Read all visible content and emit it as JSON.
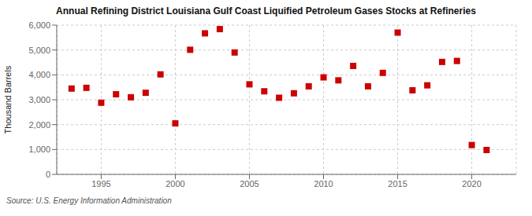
{
  "chart_data": {
    "type": "scatter",
    "title": "Annual Refining District Louisiana Gulf Coast Liquified Petroleum Gases Stocks at Refineries",
    "ylabel": "Thousand Barrels",
    "annotations": [
      "Source: U.S. Energy Information Administration"
    ],
    "x": [
      1993,
      1994,
      1995,
      1996,
      1997,
      1998,
      1999,
      2000,
      2001,
      2002,
      2003,
      2004,
      2005,
      2006,
      2007,
      2008,
      2009,
      2010,
      2011,
      2012,
      2013,
      2014,
      2015,
      2016,
      2017,
      2018,
      2019,
      2020,
      2021
    ],
    "values": [
      3450,
      3480,
      2880,
      3220,
      3100,
      3280,
      4020,
      2050,
      5010,
      5670,
      5840,
      4900,
      3620,
      3340,
      3080,
      3260,
      3540,
      3900,
      3780,
      4360,
      3540,
      4080,
      5700,
      3380,
      3580,
      4520,
      4560,
      1180,
      980
    ],
    "color": "#cc0000",
    "marker": "square",
    "xlim": [
      1992,
      2023
    ],
    "xticks": [
      1995,
      2000,
      2005,
      2010,
      2015,
      2020
    ],
    "ylim": [
      0,
      6000
    ],
    "yticks": [
      0,
      {
        "value": 1000,
        "label": "1,000"
      },
      {
        "value": 2000,
        "label": "2,000"
      },
      {
        "value": 3000,
        "label": "3,000"
      },
      {
        "value": 4000,
        "label": "4,000"
      },
      {
        "value": 5000,
        "label": "5,000"
      },
      {
        "value": 6000,
        "label": "6,000"
      }
    ],
    "grid": true
  }
}
